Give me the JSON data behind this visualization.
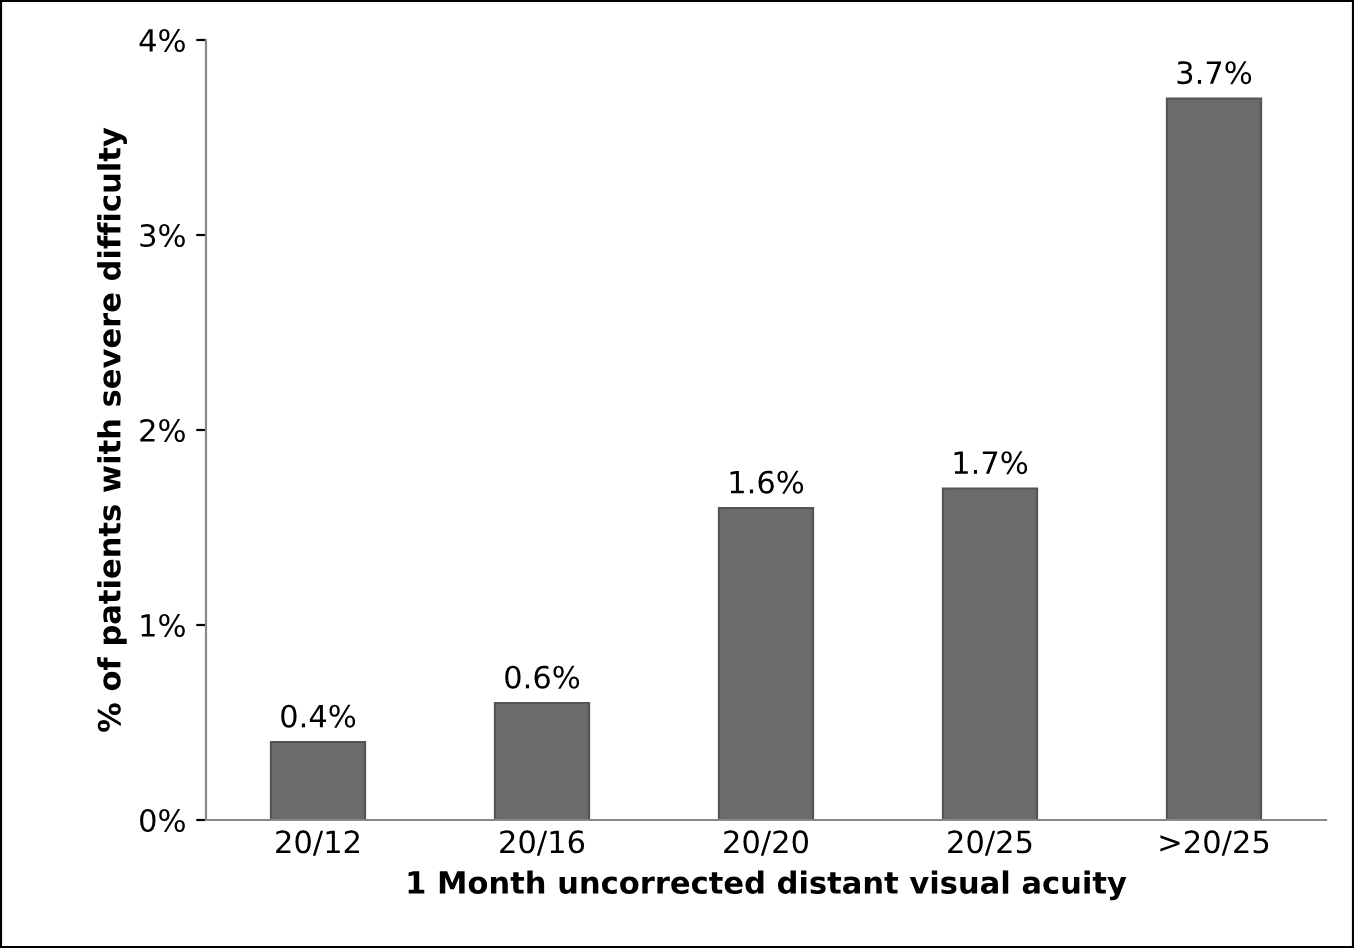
{
  "chart_data": {
    "type": "bar",
    "xlabel": "1 Month uncorrected distant visual acuity",
    "ylabel": "% of patients with severe difficulty",
    "categories": [
      "20/12",
      "20/16",
      "20/20",
      "20/25",
      ">20/25"
    ],
    "values": [
      0.4,
      0.6,
      1.6,
      1.7,
      3.7
    ],
    "color": "#6b6b6b",
    "value_labels": [
      "0.4%",
      "0.6%",
      "1.6%",
      "1.7%",
      "3.7%"
    ],
    "ylim": [
      0,
      4
    ],
    "yticks": [
      {
        "value": 0,
        "label": "0%"
      },
      {
        "value": 1,
        "label": "1%"
      },
      {
        "value": 2,
        "label": "2%"
      },
      {
        "value": 3,
        "label": "3%"
      },
      {
        "value": 4,
        "label": "4%"
      }
    ],
    "grid": false,
    "legend": false
  }
}
